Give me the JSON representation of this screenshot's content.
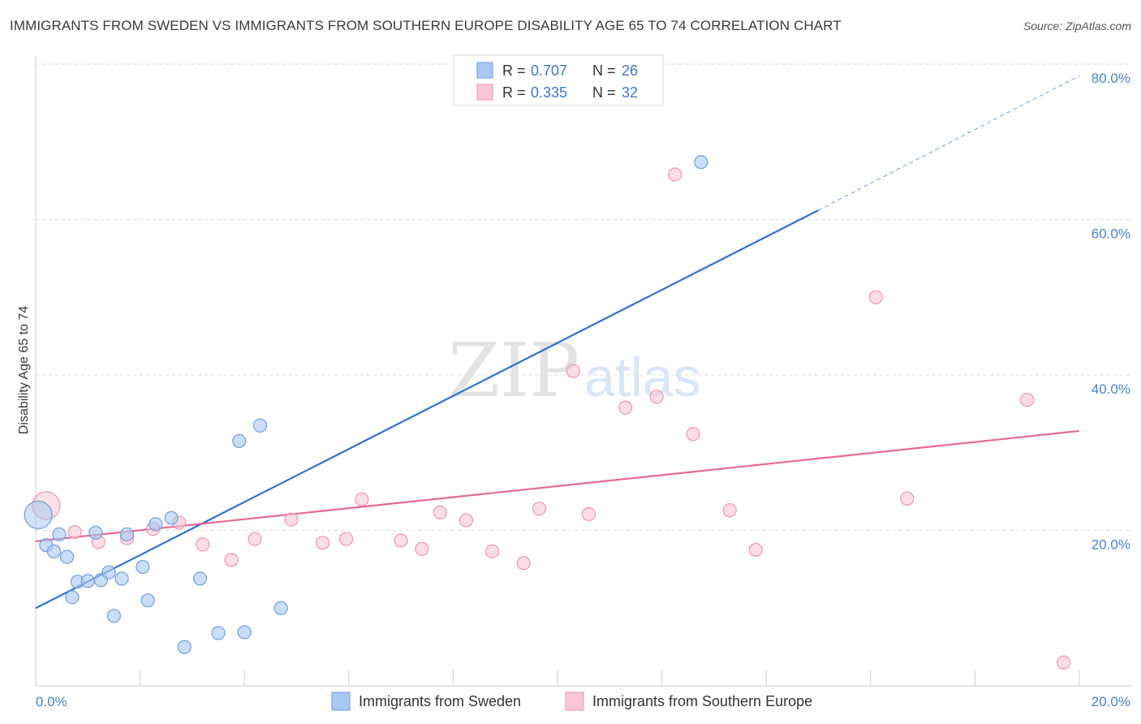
{
  "header": {
    "title": "IMMIGRANTS FROM SWEDEN VS IMMIGRANTS FROM SOUTHERN EUROPE DISABILITY AGE 65 TO 74 CORRELATION CHART",
    "source": "Source: ZipAtlas.com"
  },
  "watermark": {
    "zip": "ZIP",
    "atlas": "atlas"
  },
  "legend": {
    "r_label": "R =",
    "n_label": "N =",
    "rows": [
      {
        "r": "0.707",
        "n": "26",
        "color": "#a9c8f2",
        "stroke": "#6f9fe0"
      },
      {
        "r": "0.335",
        "n": "32",
        "color": "#f9c6d6",
        "stroke": "#ee94b2"
      }
    ]
  },
  "bottom_legend": [
    {
      "label": "Immigrants from Sweden",
      "color": "#a9c8f2",
      "stroke": "#6f9fe0"
    },
    {
      "label": "Immigrants from Southern Europe",
      "color": "#f9c6d6",
      "stroke": "#ee94b2"
    }
  ],
  "colors": {
    "sweden_fill": "#a9c8f2",
    "sweden_stroke": "#6f9fe0",
    "sweden_line": "#2f72d4",
    "southern_fill": "#f9c6d6",
    "southern_stroke": "#ee94b2",
    "southern_line": "#e56a93",
    "tick_label": "#4a7fd4",
    "grid": "#dddddd"
  },
  "chart_data": {
    "type": "scatter",
    "title": "IMMIGRANTS FROM SWEDEN VS IMMIGRANTS FROM SOUTHERN EUROPE DISABILITY AGE 65 TO 74 CORRELATION CHART",
    "xlabel": "",
    "ylabel": "Disability Age 65 to 74",
    "xlim": [
      0,
      20
    ],
    "ylim": [
      0,
      80
    ],
    "x_tick_labels": [
      "0.0%",
      "20.0%"
    ],
    "y_ticks": [
      20,
      40,
      60,
      80
    ],
    "y_tick_labels": [
      "20.0%",
      "40.0%",
      "60.0%",
      "80.0%"
    ],
    "grid": "horizontal dashed",
    "legend_position": "top-center",
    "series": [
      {
        "name": "Immigrants from Sweden",
        "r": 0.707,
        "n": 26,
        "points": [
          {
            "x": 0.05,
            "y": 22.0,
            "big": true
          },
          {
            "x": 0.2,
            "y": 18.1
          },
          {
            "x": 0.35,
            "y": 17.3
          },
          {
            "x": 0.45,
            "y": 19.5
          },
          {
            "x": 0.6,
            "y": 16.6
          },
          {
            "x": 0.7,
            "y": 11.4
          },
          {
            "x": 0.8,
            "y": 13.4
          },
          {
            "x": 1.0,
            "y": 13.5
          },
          {
            "x": 1.15,
            "y": 19.7
          },
          {
            "x": 1.25,
            "y": 13.6
          },
          {
            "x": 1.4,
            "y": 14.6
          },
          {
            "x": 1.5,
            "y": 9.0
          },
          {
            "x": 1.65,
            "y": 13.8
          },
          {
            "x": 1.75,
            "y": 19.5
          },
          {
            "x": 2.05,
            "y": 15.3
          },
          {
            "x": 2.15,
            "y": 11.0
          },
          {
            "x": 2.3,
            "y": 20.8
          },
          {
            "x": 2.6,
            "y": 21.6
          },
          {
            "x": 2.85,
            "y": 5.0
          },
          {
            "x": 3.15,
            "y": 13.8
          },
          {
            "x": 3.5,
            "y": 6.8
          },
          {
            "x": 3.9,
            "y": 31.5
          },
          {
            "x": 4.0,
            "y": 6.9
          },
          {
            "x": 4.3,
            "y": 33.5
          },
          {
            "x": 4.7,
            "y": 10.0
          },
          {
            "x": 12.75,
            "y": 67.4
          }
        ],
        "trend": {
          "x0": 0,
          "y0": 10.0,
          "x1": 15.0,
          "y1": 61.2,
          "dashed_to_x": 20.0,
          "dashed_to_y": 78.5
        }
      },
      {
        "name": "Immigrants from Southern Europe",
        "r": 0.335,
        "n": 32,
        "points": [
          {
            "x": 0.2,
            "y": 23.2,
            "big": true
          },
          {
            "x": 0.75,
            "y": 19.8
          },
          {
            "x": 1.2,
            "y": 18.5
          },
          {
            "x": 1.75,
            "y": 19.0
          },
          {
            "x": 2.25,
            "y": 20.2
          },
          {
            "x": 2.75,
            "y": 21.0
          },
          {
            "x": 3.2,
            "y": 18.2
          },
          {
            "x": 3.75,
            "y": 16.2
          },
          {
            "x": 4.2,
            "y": 18.9
          },
          {
            "x": 4.9,
            "y": 21.4
          },
          {
            "x": 5.5,
            "y": 18.4
          },
          {
            "x": 5.95,
            "y": 18.9
          },
          {
            "x": 6.25,
            "y": 24.0
          },
          {
            "x": 7.0,
            "y": 18.7
          },
          {
            "x": 7.4,
            "y": 17.6
          },
          {
            "x": 7.75,
            "y": 22.3
          },
          {
            "x": 8.25,
            "y": 21.3
          },
          {
            "x": 8.75,
            "y": 17.3
          },
          {
            "x": 9.35,
            "y": 15.8
          },
          {
            "x": 9.65,
            "y": 22.8
          },
          {
            "x": 10.3,
            "y": 40.5
          },
          {
            "x": 10.6,
            "y": 22.1
          },
          {
            "x": 11.3,
            "y": 35.8
          },
          {
            "x": 11.9,
            "y": 37.2
          },
          {
            "x": 12.25,
            "y": 65.8
          },
          {
            "x": 12.6,
            "y": 32.4
          },
          {
            "x": 13.3,
            "y": 22.6
          },
          {
            "x": 13.8,
            "y": 17.5
          },
          {
            "x": 16.1,
            "y": 50.0
          },
          {
            "x": 16.7,
            "y": 24.1
          },
          {
            "x": 19.0,
            "y": 36.8
          },
          {
            "x": 19.7,
            "y": 3.0
          }
        ],
        "trend": {
          "x0": 0,
          "y0": 18.6,
          "x1": 20.0,
          "y1": 32.8
        }
      }
    ]
  }
}
